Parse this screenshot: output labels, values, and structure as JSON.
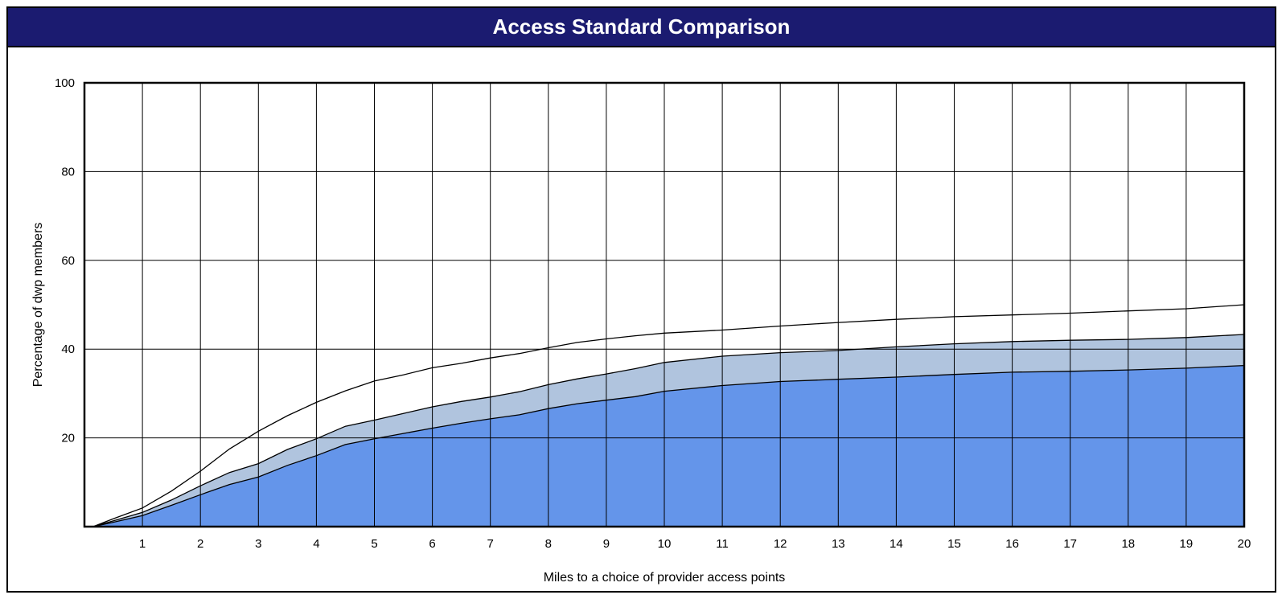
{
  "header": {
    "title": "Access Standard Comparison"
  },
  "colors": {
    "title_bar": "#1b1b70",
    "area_bottom": "#6495ea",
    "area_middle": "#b0c4de",
    "area_top": "#ffffff",
    "line": "#000000",
    "grid": "#000000"
  },
  "chart_data": {
    "type": "area",
    "title": "Access Standard Comparison",
    "xlabel": "Miles to a choice of provider access points",
    "ylabel": "Percentage of dwp members",
    "xlim": [
      0,
      20
    ],
    "ylim": [
      0,
      100
    ],
    "x_ticks": [
      1,
      2,
      3,
      4,
      5,
      6,
      7,
      8,
      9,
      10,
      11,
      12,
      13,
      14,
      15,
      16,
      17,
      18,
      19,
      20
    ],
    "y_ticks": [
      20,
      40,
      60,
      80,
      100
    ],
    "grid": true,
    "legend": "none",
    "x": [
      0.15,
      0.5,
      1,
      1.5,
      2,
      2.5,
      3,
      3.5,
      4,
      4.5,
      5,
      5.5,
      6,
      6.5,
      7,
      7.5,
      8,
      8.5,
      9,
      9.5,
      10,
      11,
      12,
      13,
      14,
      15,
      16,
      17,
      18,
      19,
      20
    ],
    "series": [
      {
        "values": [
          0,
          1,
          2.5,
          4.8,
          7.2,
          9.5,
          11.2,
          13.8,
          16,
          18.5,
          19.8,
          21,
          22.2,
          23.3,
          24.3,
          25.2,
          26.6,
          27.7,
          28.5,
          29.3,
          30.5,
          31.8,
          32.7,
          33.2,
          33.7,
          34.3,
          34.8,
          35,
          35.3,
          35.7,
          36.3
        ]
      },
      {
        "values": [
          0,
          1.3,
          3.2,
          6,
          9.2,
          12.2,
          14.2,
          17.4,
          19.8,
          22.6,
          24,
          25.5,
          27,
          28.2,
          29.2,
          30.4,
          32,
          33.3,
          34.4,
          35.6,
          37,
          38.4,
          39.2,
          39.7,
          40.5,
          41.2,
          41.7,
          42,
          42.2,
          42.6,
          43.3
        ]
      },
      {
        "values": [
          0,
          1.8,
          4.2,
          8,
          12.5,
          17.5,
          21.5,
          25,
          28,
          30.6,
          32.8,
          34.2,
          35.8,
          36.8,
          38,
          39,
          40.3,
          41.5,
          42.3,
          43,
          43.6,
          44.3,
          45.2,
          46,
          46.7,
          47.3,
          47.7,
          48.1,
          48.6,
          49.1,
          50
        ]
      }
    ]
  }
}
